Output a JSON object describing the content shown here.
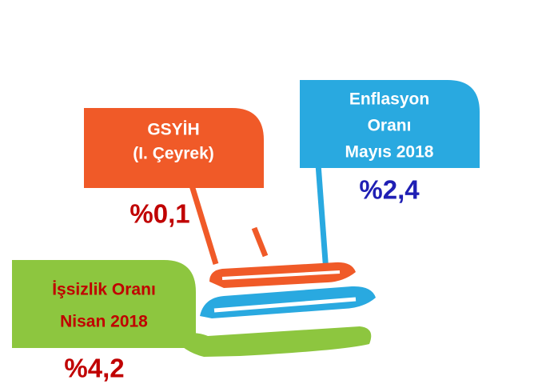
{
  "cards": [
    {
      "lines": [
        "GSYİH",
        "(I. Çeyrek)"
      ],
      "value": "%0,1"
    },
    {
      "lines": [
        "Enflasyon",
        "Oranı",
        "Mayıs 2018"
      ],
      "value": "%2,4"
    },
    {
      "lines": [
        "İşsizlik Oranı",
        "Nisan 2018"
      ],
      "value": "%4,2"
    }
  ]
}
